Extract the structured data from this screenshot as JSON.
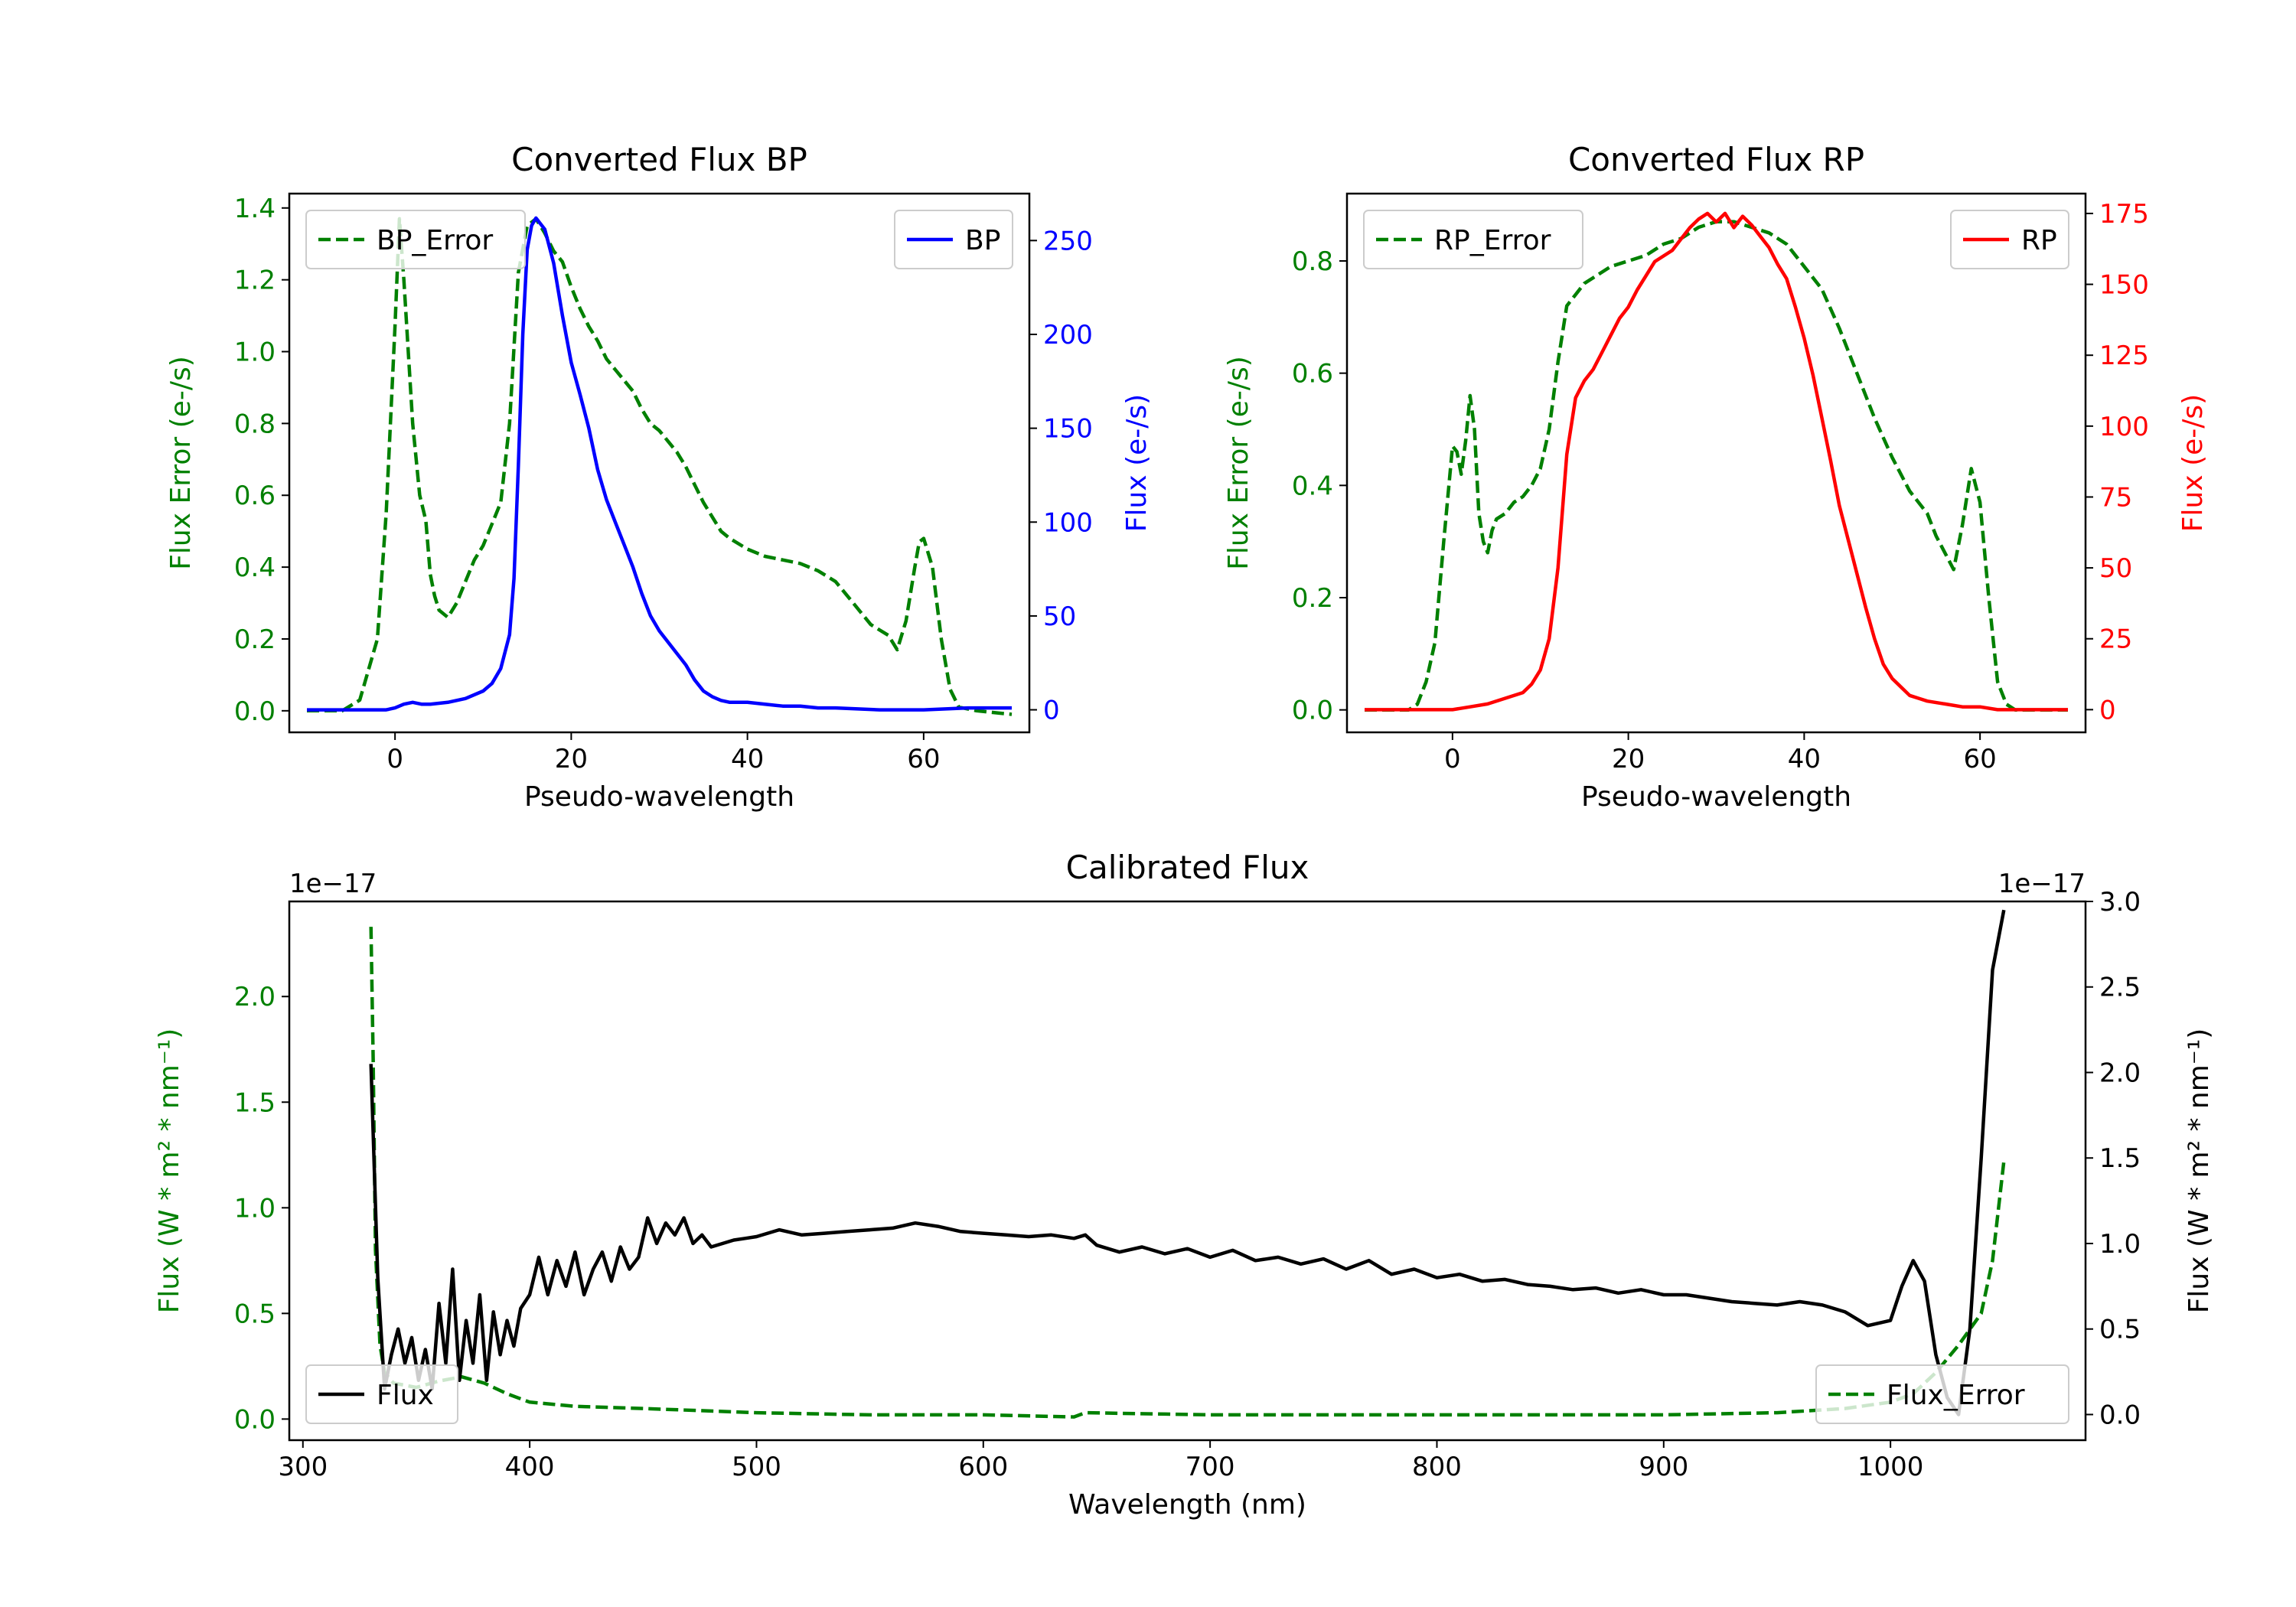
{
  "colors": {
    "bp": "#0000ff",
    "rp": "#ff0000",
    "error": "#008000",
    "flux": "#000000"
  },
  "chart_data": [
    {
      "type": "line",
      "title": "Converted Flux BP",
      "xlabel": "Pseudo-wavelength",
      "xlim": [
        -12,
        72
      ],
      "xticks": [
        0,
        20,
        40,
        60
      ],
      "left_axis": {
        "label": "Flux Error (e-/s)",
        "lim": [
          -0.06,
          1.44
        ],
        "ticks": [
          0.0,
          0.2,
          0.4,
          0.6,
          0.8,
          1.0,
          1.2,
          1.4
        ],
        "tick_labels": [
          "0.0",
          "0.2",
          "0.4",
          "0.6",
          "0.8",
          "1.0",
          "1.2",
          "1.4"
        ]
      },
      "right_axis": {
        "label": "Flux (e-/s)",
        "lim": [
          -12,
          275
        ],
        "ticks": [
          0,
          50,
          100,
          150,
          200,
          250
        ],
        "tick_labels": [
          "0",
          "50",
          "100",
          "150",
          "200",
          "250"
        ]
      },
      "series": [
        {
          "name": "BP_Error",
          "axis": "left",
          "style": "dashed",
          "color": "#008000",
          "x": [
            -10,
            -6,
            -4,
            -2,
            -1,
            0,
            0.5,
            1,
            2,
            2.8,
            3.5,
            4,
            4.5,
            5,
            6,
            7,
            8,
            9,
            10,
            11,
            12,
            13,
            14,
            15,
            16,
            17,
            18,
            19,
            20,
            21,
            22,
            23,
            24,
            25,
            26,
            27,
            28,
            29,
            30,
            31,
            32,
            33,
            34,
            35,
            36,
            37,
            38,
            40,
            42,
            44,
            46,
            48,
            50,
            52,
            54,
            56,
            57,
            58,
            59,
            59.5,
            60,
            61,
            62,
            63,
            64,
            66,
            70
          ],
          "values": [
            0,
            0,
            0.03,
            0.2,
            0.55,
            1.07,
            1.37,
            1.2,
            0.8,
            0.6,
            0.53,
            0.38,
            0.32,
            0.28,
            0.26,
            0.3,
            0.36,
            0.42,
            0.46,
            0.52,
            0.58,
            0.8,
            1.22,
            1.35,
            1.37,
            1.33,
            1.28,
            1.25,
            1.18,
            1.12,
            1.07,
            1.03,
            0.98,
            0.95,
            0.92,
            0.89,
            0.84,
            0.8,
            0.78,
            0.75,
            0.72,
            0.68,
            0.63,
            0.58,
            0.54,
            0.5,
            0.48,
            0.45,
            0.43,
            0.42,
            0.41,
            0.39,
            0.36,
            0.3,
            0.24,
            0.21,
            0.17,
            0.25,
            0.4,
            0.47,
            0.48,
            0.4,
            0.2,
            0.06,
            0.01,
            0.0,
            -0.01
          ]
        },
        {
          "name": "BP",
          "axis": "right",
          "style": "solid",
          "color": "#0000ff",
          "x": [
            -10,
            -4,
            -1,
            0,
            1,
            2,
            3,
            4,
            6,
            8,
            10,
            11,
            12,
            13,
            13.5,
            14,
            14.5,
            15,
            15.5,
            16,
            17,
            18,
            19,
            20,
            21,
            22,
            23,
            24,
            25,
            26,
            27,
            28,
            29,
            30,
            31,
            32,
            33,
            34,
            35,
            36,
            37,
            38,
            40,
            42,
            44,
            46,
            48,
            50,
            55,
            60,
            65,
            70
          ],
          "values": [
            0,
            0,
            0,
            1,
            3,
            4,
            3,
            3,
            4,
            6,
            10,
            14,
            22,
            40,
            70,
            130,
            200,
            245,
            258,
            262,
            256,
            238,
            210,
            185,
            168,
            150,
            128,
            112,
            100,
            88,
            76,
            62,
            50,
            42,
            36,
            30,
            24,
            16,
            10,
            7,
            5,
            4,
            4,
            3,
            2,
            2,
            1,
            1,
            0,
            0,
            1,
            1
          ]
        }
      ],
      "legend": [
        {
          "label": "BP_Error",
          "placement": "upper-left"
        },
        {
          "label": "BP",
          "placement": "upper-right"
        }
      ]
    },
    {
      "type": "line",
      "title": "Converted Flux RP",
      "xlabel": "Pseudo-wavelength",
      "xlim": [
        -12,
        72
      ],
      "xticks": [
        0,
        20,
        40,
        60
      ],
      "left_axis": {
        "label": "Flux Error (e-/s)",
        "lim": [
          -0.04,
          0.92
        ],
        "ticks": [
          0.0,
          0.2,
          0.4,
          0.6,
          0.8
        ],
        "tick_labels": [
          "0.0",
          "0.2",
          "0.4",
          "0.6",
          "0.8"
        ]
      },
      "right_axis": {
        "label": "Flux (e-/s)",
        "lim": [
          -8,
          182
        ],
        "ticks": [
          0,
          25,
          50,
          75,
          100,
          125,
          150,
          175
        ],
        "tick_labels": [
          "0",
          "25",
          "50",
          "75",
          "100",
          "125",
          "150",
          "175"
        ]
      },
      "series": [
        {
          "name": "RP_Error",
          "axis": "left",
          "style": "dashed",
          "color": "#008000",
          "x": [
            -10,
            -5,
            -4,
            -3,
            -2,
            -1,
            0,
            0.5,
            1,
            1.5,
            2,
            2.5,
            3,
            3.5,
            4,
            4.5,
            5,
            6,
            7,
            8,
            9,
            10,
            11,
            12,
            13,
            14,
            15,
            16,
            18,
            20,
            22,
            24,
            26,
            28,
            30,
            32,
            34,
            36,
            38,
            40,
            42,
            44,
            46,
            48,
            50,
            52,
            54,
            55,
            56,
            57,
            58,
            59,
            60,
            61,
            62,
            63,
            64,
            66,
            70
          ],
          "values": [
            0,
            0,
            0.01,
            0.05,
            0.12,
            0.3,
            0.47,
            0.46,
            0.42,
            0.48,
            0.56,
            0.5,
            0.35,
            0.3,
            0.28,
            0.32,
            0.34,
            0.35,
            0.37,
            0.38,
            0.4,
            0.43,
            0.5,
            0.62,
            0.72,
            0.74,
            0.76,
            0.77,
            0.79,
            0.8,
            0.81,
            0.83,
            0.84,
            0.86,
            0.87,
            0.87,
            0.86,
            0.85,
            0.83,
            0.79,
            0.75,
            0.68,
            0.6,
            0.52,
            0.45,
            0.39,
            0.35,
            0.31,
            0.28,
            0.25,
            0.33,
            0.43,
            0.37,
            0.2,
            0.05,
            0.01,
            0.0,
            0,
            0
          ]
        },
        {
          "name": "RP",
          "axis": "right",
          "style": "solid",
          "color": "#ff0000",
          "x": [
            -10,
            -5,
            0,
            2,
            4,
            6,
            8,
            9,
            10,
            11,
            12,
            13,
            14,
            15,
            16,
            17,
            18,
            19,
            20,
            21,
            22,
            23,
            24,
            25,
            26,
            27,
            28,
            29,
            30,
            31,
            32,
            33,
            34,
            35,
            36,
            37,
            38,
            39,
            40,
            41,
            42,
            43,
            44,
            45,
            46,
            47,
            48,
            49,
            50,
            51,
            52,
            53,
            54,
            56,
            58,
            60,
            62,
            65,
            70
          ],
          "values": [
            0,
            0,
            0,
            1,
            2,
            4,
            6,
            9,
            14,
            25,
            50,
            90,
            110,
            116,
            120,
            126,
            132,
            138,
            142,
            148,
            153,
            158,
            160,
            162,
            166,
            170,
            173,
            175,
            172,
            175,
            170,
            174,
            171,
            167,
            163,
            157,
            152,
            142,
            131,
            118,
            103,
            88,
            72,
            60,
            48,
            36,
            25,
            16,
            11,
            8,
            5,
            4,
            3,
            2,
            1,
            1,
            0,
            0,
            0
          ]
        }
      ],
      "legend": [
        {
          "label": "RP_Error",
          "placement": "upper-left"
        },
        {
          "label": "RP",
          "placement": "upper-right"
        }
      ]
    },
    {
      "type": "line",
      "title": "Calibrated Flux",
      "xlabel": "Wavelength (nm)",
      "xlim": [
        294,
        1086
      ],
      "xticks": [
        300,
        400,
        500,
        600,
        700,
        800,
        900,
        1000
      ],
      "left_axis": {
        "label": "Flux (W * m² * nm⁻¹)",
        "offset_text": "1e−17",
        "lim": [
          -0.1,
          2.45
        ],
        "ticks": [
          0.0,
          0.5,
          1.0,
          1.5,
          2.0
        ],
        "tick_labels": [
          "0.0",
          "0.5",
          "1.0",
          "1.5",
          "2.0"
        ]
      },
      "right_axis": {
        "label": "Flux (W * m² * nm⁻¹)",
        "offset_text": "1e−17",
        "lim": [
          -0.15,
          3.0
        ],
        "ticks": [
          0.0,
          0.5,
          1.0,
          1.5,
          2.0,
          2.5,
          3.0
        ],
        "tick_labels": [
          "0.0",
          "0.5",
          "1.0",
          "1.5",
          "2.0",
          "2.5",
          "3.0"
        ]
      },
      "series": [
        {
          "name": "Flux_Error",
          "axis": "left",
          "style": "dashed",
          "color": "#008000",
          "x": [
            330,
            331,
            332,
            334,
            336,
            340,
            345,
            350,
            360,
            370,
            380,
            390,
            400,
            420,
            450,
            500,
            550,
            600,
            640,
            645,
            700,
            750,
            800,
            900,
            950,
            980,
            1000,
            1010,
            1020,
            1030,
            1040,
            1045,
            1050
          ],
          "values": [
            2.33,
            1.7,
            0.8,
            0.35,
            0.22,
            0.17,
            0.16,
            0.15,
            0.18,
            0.2,
            0.17,
            0.12,
            0.08,
            0.06,
            0.05,
            0.03,
            0.02,
            0.02,
            0.01,
            0.03,
            0.02,
            0.02,
            0.02,
            0.02,
            0.03,
            0.05,
            0.08,
            0.12,
            0.22,
            0.35,
            0.5,
            0.75,
            1.22
          ]
        },
        {
          "name": "Flux",
          "axis": "right",
          "style": "solid",
          "color": "#000000",
          "x": [
            330,
            333,
            336,
            339,
            342,
            345,
            348,
            351,
            354,
            357,
            360,
            363,
            366,
            369,
            372,
            375,
            378,
            381,
            384,
            387,
            390,
            393,
            396,
            400,
            404,
            408,
            412,
            416,
            420,
            424,
            428,
            432,
            436,
            440,
            444,
            448,
            452,
            456,
            460,
            464,
            468,
            472,
            476,
            480,
            485,
            490,
            495,
            500,
            510,
            520,
            530,
            540,
            550,
            560,
            570,
            580,
            590,
            600,
            610,
            620,
            630,
            640,
            645,
            650,
            660,
            670,
            680,
            690,
            700,
            710,
            720,
            730,
            740,
            750,
            760,
            770,
            780,
            790,
            800,
            810,
            820,
            830,
            840,
            850,
            860,
            870,
            880,
            890,
            900,
            910,
            920,
            930,
            940,
            950,
            960,
            970,
            980,
            990,
            1000,
            1005,
            1010,
            1015,
            1020,
            1025,
            1030,
            1035,
            1040,
            1045,
            1050
          ],
          "values": [
            2.05,
            0.8,
            0.15,
            0.35,
            0.5,
            0.3,
            0.45,
            0.2,
            0.38,
            0.15,
            0.65,
            0.3,
            0.85,
            0.2,
            0.55,
            0.3,
            0.7,
            0.2,
            0.6,
            0.35,
            0.55,
            0.4,
            0.62,
            0.7,
            0.92,
            0.7,
            0.9,
            0.75,
            0.95,
            0.7,
            0.85,
            0.95,
            0.78,
            0.98,
            0.85,
            0.92,
            1.15,
            1.0,
            1.12,
            1.05,
            1.15,
            1.0,
            1.05,
            0.98,
            1.0,
            1.02,
            1.03,
            1.04,
            1.08,
            1.05,
            1.06,
            1.07,
            1.08,
            1.09,
            1.12,
            1.1,
            1.07,
            1.06,
            1.05,
            1.04,
            1.05,
            1.03,
            1.05,
            0.99,
            0.95,
            0.98,
            0.94,
            0.97,
            0.92,
            0.96,
            0.9,
            0.92,
            0.88,
            0.91,
            0.85,
            0.9,
            0.82,
            0.85,
            0.8,
            0.82,
            0.78,
            0.79,
            0.76,
            0.75,
            0.73,
            0.74,
            0.71,
            0.73,
            0.7,
            0.7,
            0.68,
            0.66,
            0.65,
            0.64,
            0.66,
            0.64,
            0.6,
            0.52,
            0.55,
            0.75,
            0.9,
            0.78,
            0.35,
            0.1,
            0.0,
            0.5,
            1.5,
            2.6,
            2.95
          ]
        }
      ],
      "legend": [
        {
          "label": "Flux",
          "placement": "lower-left"
        },
        {
          "label": "Flux_Error",
          "placement": "lower-right"
        }
      ]
    }
  ]
}
